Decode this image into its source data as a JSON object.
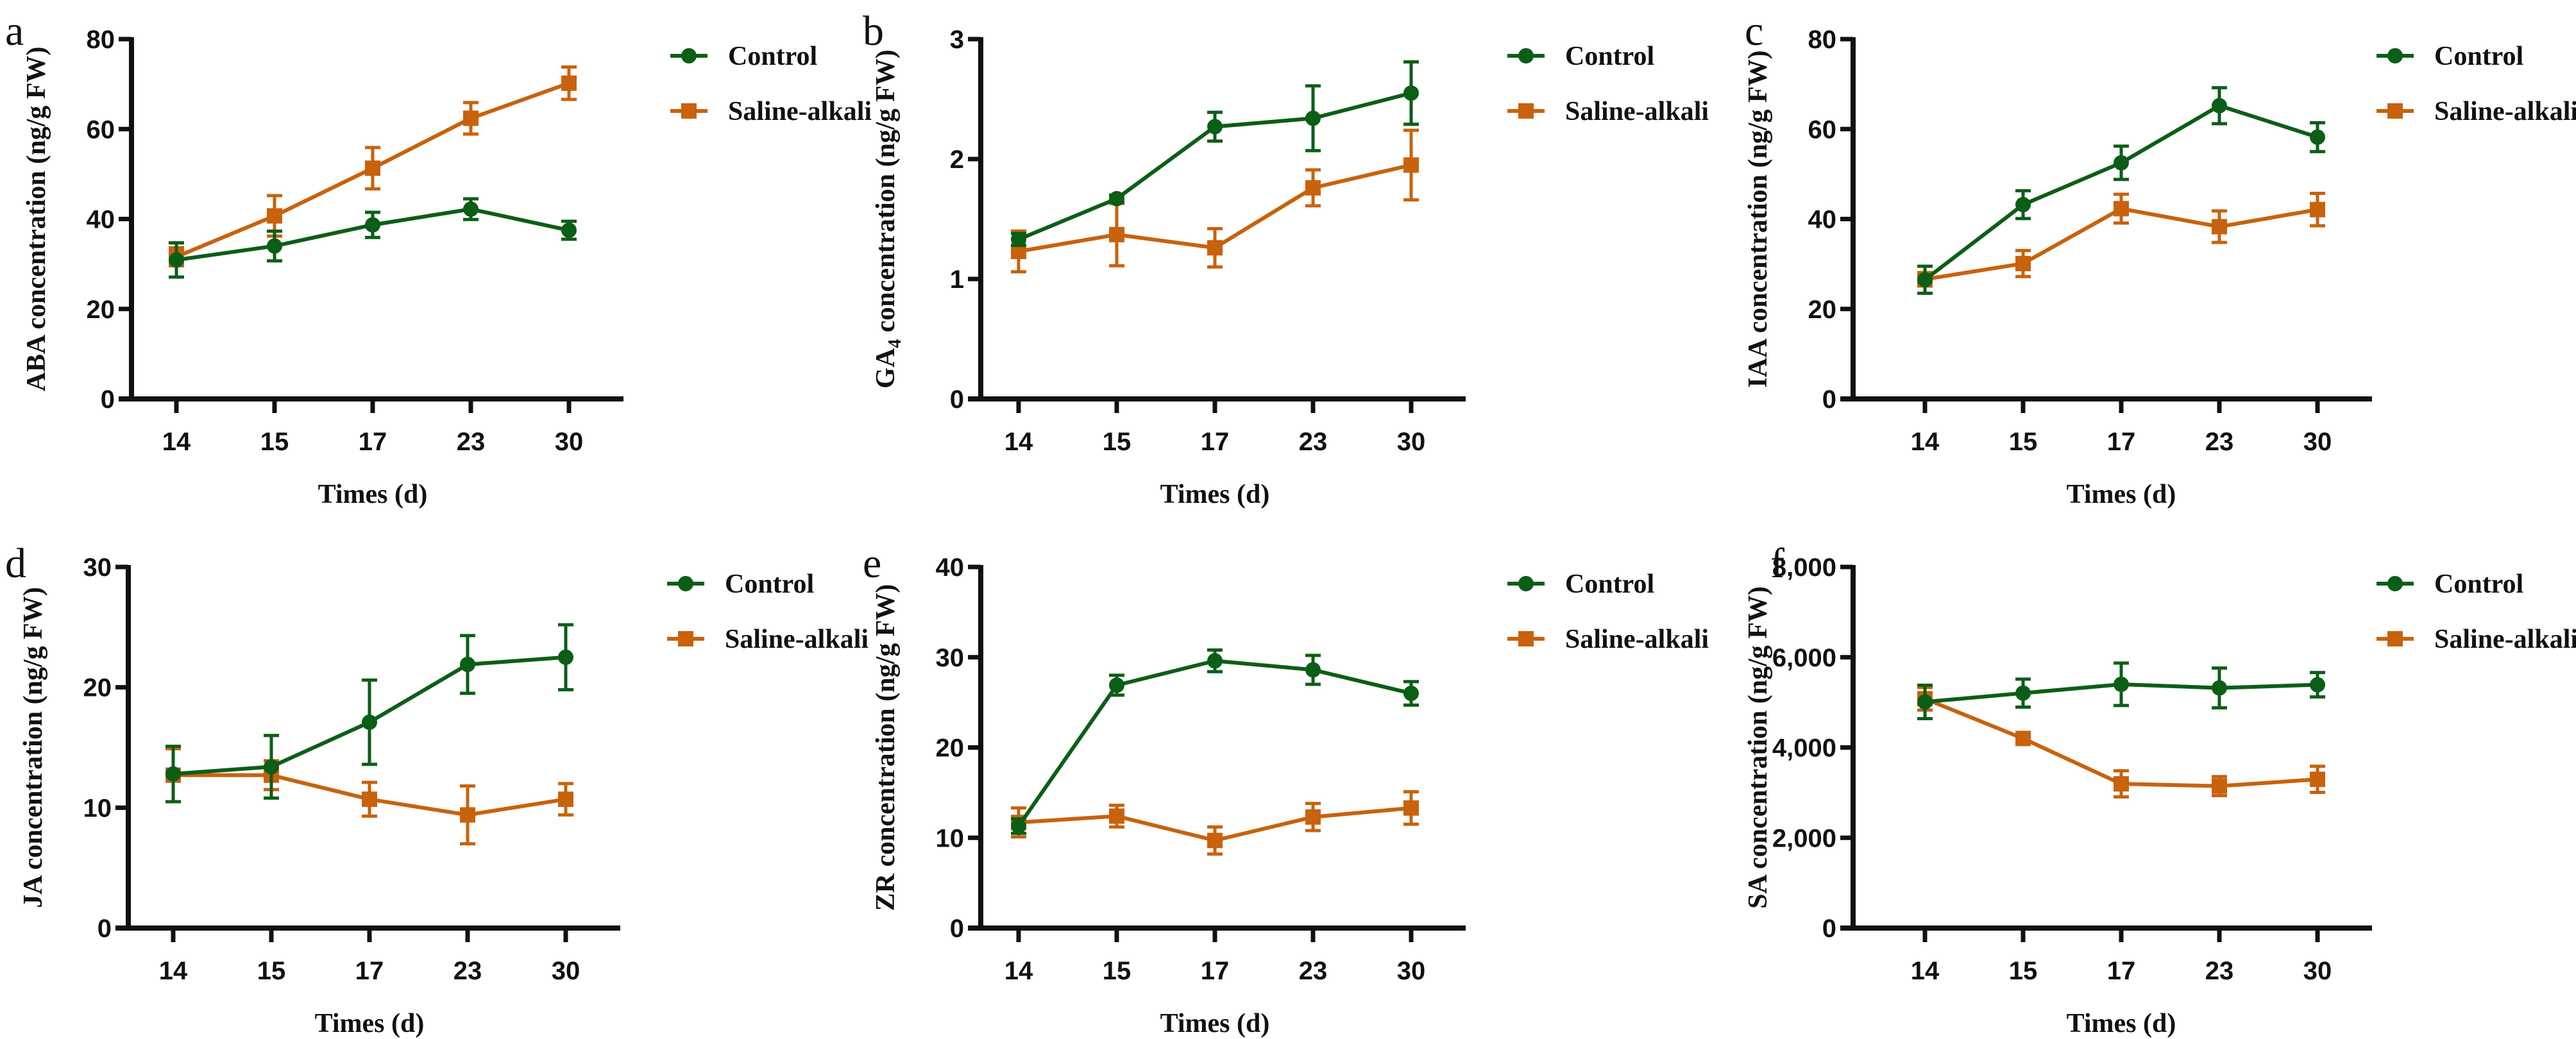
{
  "colors": {
    "control": "#0b5e16",
    "saline": "#c8620c",
    "axis": "#111111"
  },
  "legend": {
    "control_label": "Control",
    "saline_label": "Saline-alkali"
  },
  "chart_data": [
    {
      "panel": "a",
      "type": "line",
      "title": "",
      "xlabel": "Times (d)",
      "ylabel": "ABA concentration  (ng/g FW)",
      "categories": [
        "14",
        "15",
        "17",
        "23",
        "30"
      ],
      "ylim": [
        0,
        80
      ],
      "yticks": [
        0,
        20,
        40,
        60,
        80
      ],
      "ytick_labels": [
        "0",
        "20",
        "40",
        "60",
        "80"
      ],
      "legend_position": "right",
      "series": [
        {
          "name": "Control",
          "marker": "circle",
          "values": [
            30.9,
            34.0,
            38.7,
            42.2,
            37.5
          ],
          "errors": [
            3.8,
            3.3,
            2.8,
            2.3,
            2.0
          ]
        },
        {
          "name": "Saline-alkali",
          "marker": "square",
          "values": [
            31.6,
            40.7,
            51.3,
            62.4,
            70.2
          ],
          "errors": [
            2.0,
            4.5,
            4.6,
            3.5,
            3.6
          ]
        }
      ]
    },
    {
      "panel": "b",
      "type": "line",
      "title": "",
      "xlabel": "Times (d)",
      "ylabel": "GA4 concentration (ng/g FW)",
      "ylabel_parts": [
        "GA",
        "4",
        " concentration (ng/g FW)"
      ],
      "categories": [
        "14",
        "15",
        "17",
        "23",
        "30"
      ],
      "ylim": [
        0,
        3
      ],
      "yticks": [
        0,
        1,
        2,
        3
      ],
      "ytick_labels": [
        "0",
        "1",
        "2",
        "3"
      ],
      "legend_position": "right",
      "series": [
        {
          "name": "Control",
          "marker": "circle",
          "values": [
            1.33,
            1.67,
            2.27,
            2.34,
            2.55
          ],
          "errors": [
            0.05,
            0.03,
            0.12,
            0.27,
            0.26
          ]
        },
        {
          "name": "Saline-alkali",
          "marker": "square",
          "values": [
            1.23,
            1.37,
            1.26,
            1.76,
            1.95
          ],
          "errors": [
            0.17,
            0.26,
            0.16,
            0.15,
            0.29
          ]
        }
      ]
    },
    {
      "panel": "c",
      "type": "line",
      "title": "",
      "xlabel": "Times (d)",
      "ylabel": "IAA concentration  (ng/g FW)",
      "categories": [
        "14",
        "15",
        "17",
        "23",
        "30"
      ],
      "ylim": [
        0,
        80
      ],
      "yticks": [
        0,
        20,
        40,
        60,
        80
      ],
      "ytick_labels": [
        "0",
        "20",
        "40",
        "60",
        "80"
      ],
      "legend_position": "right",
      "series": [
        {
          "name": "Control",
          "marker": "circle",
          "values": [
            26.5,
            43.2,
            52.5,
            65.2,
            58.2
          ],
          "errors": [
            3.0,
            3.1,
            3.7,
            4.0,
            3.2
          ]
        },
        {
          "name": "Saline-alkali",
          "marker": "square",
          "values": [
            26.6,
            30.1,
            42.3,
            38.3,
            42.1
          ],
          "errors": [
            1.5,
            2.9,
            3.2,
            3.5,
            3.6
          ]
        }
      ]
    },
    {
      "panel": "d",
      "type": "line",
      "title": "",
      "xlabel": "Times (d)",
      "ylabel": "JA concentration  (ng/g FW)",
      "categories": [
        "14",
        "15",
        "17",
        "23",
        "30"
      ],
      "ylim": [
        0,
        30
      ],
      "yticks": [
        0,
        10,
        20,
        30
      ],
      "ytick_labels": [
        "0",
        "10",
        "20",
        "30"
      ],
      "legend_position": "right",
      "series": [
        {
          "name": "Control",
          "marker": "circle",
          "values": [
            12.8,
            13.4,
            17.1,
            21.9,
            22.5
          ],
          "errors": [
            2.3,
            2.6,
            3.5,
            2.4,
            2.7
          ]
        },
        {
          "name": "Saline-alkali",
          "marker": "square",
          "values": [
            12.7,
            12.7,
            10.7,
            9.4,
            10.7
          ],
          "errors": [
            2.2,
            1.2,
            1.4,
            2.4,
            1.3
          ]
        }
      ]
    },
    {
      "panel": "e",
      "type": "line",
      "title": "",
      "xlabel": "Times (d)",
      "ylabel": "ZR concentration (ng/g FW)",
      "categories": [
        "14",
        "15",
        "17",
        "23",
        "30"
      ],
      "ylim": [
        0,
        40
      ],
      "yticks": [
        0,
        10,
        20,
        30,
        40
      ],
      "ytick_labels": [
        "0",
        "10",
        "20",
        "30",
        "40"
      ],
      "legend_position": "right",
      "series": [
        {
          "name": "Control",
          "marker": "circle",
          "values": [
            11.3,
            26.9,
            29.6,
            28.6,
            26.0
          ],
          "errors": [
            0.8,
            1.1,
            1.2,
            1.6,
            1.3
          ]
        },
        {
          "name": "Saline-alkali",
          "marker": "square",
          "values": [
            11.7,
            12.4,
            9.7,
            12.3,
            13.3
          ],
          "errors": [
            1.6,
            1.2,
            1.5,
            1.5,
            1.8
          ]
        }
      ]
    },
    {
      "panel": "f",
      "type": "line",
      "title": "",
      "xlabel": "Times (d)",
      "ylabel": "SA concentration  (ng/g FW)",
      "categories": [
        "14",
        "15",
        "17",
        "23",
        "30"
      ],
      "ylim": [
        0,
        8000
      ],
      "yticks": [
        0,
        2000,
        4000,
        6000,
        8000
      ],
      "ytick_labels": [
        "0",
        "2,000",
        "4,000",
        "6,000",
        "8,000"
      ],
      "legend_position": "right",
      "series": [
        {
          "name": "Control",
          "marker": "circle",
          "values": [
            5010,
            5205,
            5400,
            5320,
            5390
          ],
          "errors": [
            370,
            310,
            470,
            440,
            270
          ]
        },
        {
          "name": "Saline-alkali",
          "marker": "square",
          "values": [
            5080,
            4200,
            3195,
            3145,
            3295
          ],
          "errors": [
            250,
            120,
            290,
            210,
            290
          ]
        }
      ]
    }
  ]
}
